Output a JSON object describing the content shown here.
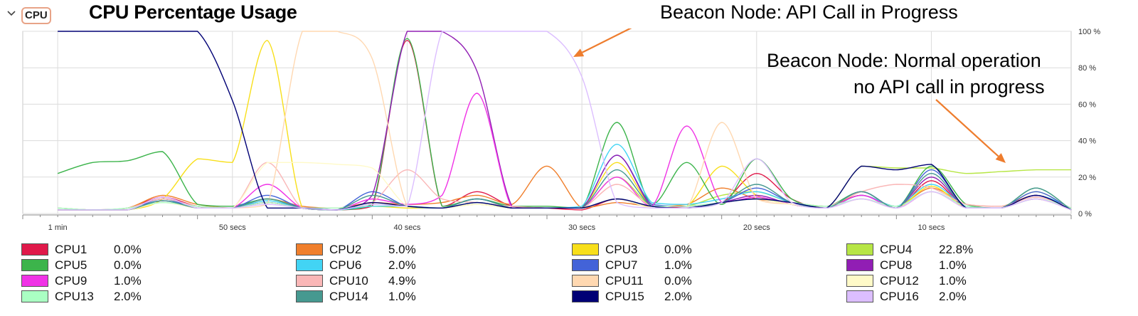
{
  "header": {
    "section_label": "CPU",
    "title": "CPU Percentage Usage"
  },
  "annotations": {
    "api_call": "Beacon Node: API Call in Progress",
    "normal_line1": "Beacon Node: Normal operation",
    "normal_line2": "no API call in progress",
    "arrow_color": "#ee7d2e"
  },
  "chart_data": {
    "type": "line",
    "x_unit": "seconds ago",
    "xlim": [
      62,
      2
    ],
    "ylim": [
      0,
      100
    ],
    "grid": true,
    "x_ticks": [
      {
        "value": 60,
        "label": "1 min"
      },
      {
        "value": 50,
        "label": "50 secs"
      },
      {
        "value": 40,
        "label": "40 secs"
      },
      {
        "value": 30,
        "label": "30 secs"
      },
      {
        "value": 20,
        "label": "20 secs"
      },
      {
        "value": 10,
        "label": "10 secs"
      }
    ],
    "y_ticks": [
      {
        "value": 100,
        "label": "100 %"
      },
      {
        "value": 80,
        "label": "80 %"
      },
      {
        "value": 60,
        "label": "60 %"
      },
      {
        "value": 40,
        "label": "40 %"
      },
      {
        "value": 20,
        "label": "20 %"
      },
      {
        "value": 0,
        "label": "0 %"
      }
    ],
    "x": [
      60,
      58,
      56,
      54,
      52,
      50,
      48,
      46,
      44,
      42,
      40,
      38,
      36,
      34,
      32,
      30,
      28,
      26,
      24,
      22,
      20,
      18,
      16,
      14,
      12,
      10,
      8,
      6,
      4,
      2
    ],
    "series": [
      {
        "name": "CPU1",
        "color": "#e0194a",
        "current": "0.0%",
        "values": [
          2,
          2,
          3,
          9,
          4,
          3,
          6,
          3,
          2,
          4,
          95,
          4,
          12,
          4,
          3,
          2,
          8,
          3,
          4,
          6,
          22,
          8,
          3,
          12,
          3,
          18,
          3,
          3,
          8,
          2
        ]
      },
      {
        "name": "CPU2",
        "color": "#f07f2c",
        "current": "5.0%",
        "values": [
          3,
          2,
          3,
          10,
          5,
          3,
          8,
          4,
          3,
          6,
          5,
          6,
          10,
          5,
          26,
          3,
          6,
          4,
          5,
          14,
          8,
          6,
          4,
          10,
          4,
          14,
          5,
          4,
          10,
          3
        ]
      },
      {
        "name": "CPU3",
        "color": "#f8df1a",
        "current": "0.0%",
        "values": [
          2,
          2,
          2,
          8,
          30,
          28,
          95,
          3,
          2,
          4,
          3,
          3,
          5,
          3,
          3,
          3,
          28,
          4,
          4,
          26,
          10,
          5,
          3,
          8,
          3,
          15,
          3,
          3,
          12,
          2
        ]
      },
      {
        "name": "CPU4",
        "color": "#b7e645",
        "current": "22.8%",
        "values": [
          3,
          2,
          3,
          8,
          4,
          3,
          8,
          3,
          2,
          5,
          4,
          3,
          6,
          3,
          3,
          3,
          20,
          4,
          4,
          10,
          12,
          6,
          3,
          26,
          25,
          25,
          22,
          23,
          24,
          24
        ]
      },
      {
        "name": "CPU5",
        "color": "#3cb44b",
        "current": "0.0%",
        "values": [
          22,
          28,
          29,
          34,
          5,
          4,
          8,
          3,
          2,
          5,
          96,
          4,
          8,
          4,
          4,
          3,
          50,
          5,
          28,
          5,
          30,
          8,
          4,
          12,
          3,
          26,
          5,
          3,
          14,
          2
        ]
      },
      {
        "name": "CPU6",
        "color": "#42d4f4",
        "current": "2.0%",
        "values": [
          3,
          2,
          3,
          7,
          4,
          3,
          7,
          3,
          2,
          4,
          4,
          3,
          6,
          3,
          3,
          4,
          38,
          6,
          5,
          8,
          12,
          6,
          3,
          10,
          4,
          16,
          4,
          3,
          10,
          3
        ]
      },
      {
        "name": "CPU7",
        "color": "#4363d8",
        "current": "1.0%",
        "values": [
          2,
          2,
          2,
          8,
          3,
          3,
          10,
          3,
          2,
          12,
          4,
          3,
          8,
          3,
          3,
          3,
          32,
          5,
          4,
          6,
          14,
          6,
          3,
          12,
          3,
          24,
          3,
          3,
          12,
          2
        ]
      },
      {
        "name": "CPU8",
        "color": "#911eb4",
        "current": "1.0%",
        "values": [
          2,
          2,
          2,
          7,
          3,
          3,
          6,
          3,
          2,
          10,
          100,
          100,
          78,
          4,
          3,
          3,
          32,
          4,
          3,
          6,
          10,
          5,
          3,
          10,
          3,
          20,
          3,
          3,
          10,
          2
        ]
      },
      {
        "name": "CPU9",
        "color": "#f032e6",
        "current": "1.0%",
        "values": [
          2,
          2,
          2,
          9,
          3,
          3,
          16,
          3,
          2,
          8,
          5,
          10,
          66,
          3,
          3,
          3,
          20,
          4,
          48,
          6,
          9,
          5,
          3,
          10,
          3,
          12,
          3,
          3,
          8,
          2
        ]
      },
      {
        "name": "CPU10",
        "color": "#fab7b7",
        "current": "4.9%",
        "values": [
          3,
          2,
          3,
          8,
          4,
          3,
          28,
          3,
          3,
          6,
          24,
          8,
          6,
          4,
          3,
          3,
          16,
          4,
          4,
          6,
          8,
          6,
          4,
          12,
          16,
          14,
          5,
          4,
          9,
          3
        ]
      },
      {
        "name": "CPU11",
        "color": "#ffd8b1",
        "current": "0.0%",
        "values": [
          2,
          2,
          2,
          6,
          3,
          3,
          5,
          100,
          100,
          85,
          4,
          3,
          5,
          3,
          3,
          3,
          8,
          3,
          3,
          50,
          8,
          5,
          3,
          8,
          3,
          12,
          3,
          3,
          8,
          2
        ]
      },
      {
        "name": "CPU12",
        "color": "#fffac8",
        "current": "1.0%",
        "values": [
          2,
          2,
          2,
          6,
          3,
          3,
          28,
          28,
          27,
          25,
          4,
          3,
          5,
          3,
          3,
          3,
          8,
          3,
          3,
          6,
          8,
          5,
          3,
          8,
          3,
          12,
          3,
          3,
          8,
          2
        ]
      },
      {
        "name": "CPU13",
        "color": "#aaffc3",
        "current": "2.0%",
        "values": [
          3,
          2,
          3,
          6,
          4,
          3,
          6,
          3,
          3,
          5,
          4,
          3,
          6,
          3,
          3,
          3,
          8,
          4,
          4,
          6,
          8,
          6,
          4,
          8,
          4,
          12,
          4,
          3,
          8,
          3
        ]
      },
      {
        "name": "CPU14",
        "color": "#469990",
        "current": "1.0%",
        "values": [
          2,
          2,
          2,
          7,
          3,
          3,
          8,
          3,
          2,
          10,
          4,
          3,
          8,
          3,
          3,
          3,
          24,
          4,
          3,
          6,
          16,
          6,
          3,
          12,
          3,
          22,
          3,
          3,
          14,
          2
        ]
      },
      {
        "name": "CPU15",
        "color": "#000075",
        "current": "2.0%",
        "values": [
          100,
          100,
          100,
          100,
          100,
          62,
          3,
          3,
          2,
          6,
          4,
          3,
          6,
          3,
          3,
          3,
          8,
          4,
          3,
          6,
          8,
          6,
          3,
          26,
          24,
          27,
          3,
          3,
          10,
          2
        ]
      },
      {
        "name": "CPU16",
        "color": "#dcbeff",
        "current": "2.0%",
        "values": [
          2,
          2,
          2,
          9,
          3,
          3,
          5,
          3,
          2,
          5,
          4,
          100,
          100,
          100,
          100,
          75,
          6,
          3,
          3,
          6,
          30,
          6,
          3,
          8,
          3,
          12,
          3,
          3,
          8,
          2
        ]
      }
    ]
  }
}
